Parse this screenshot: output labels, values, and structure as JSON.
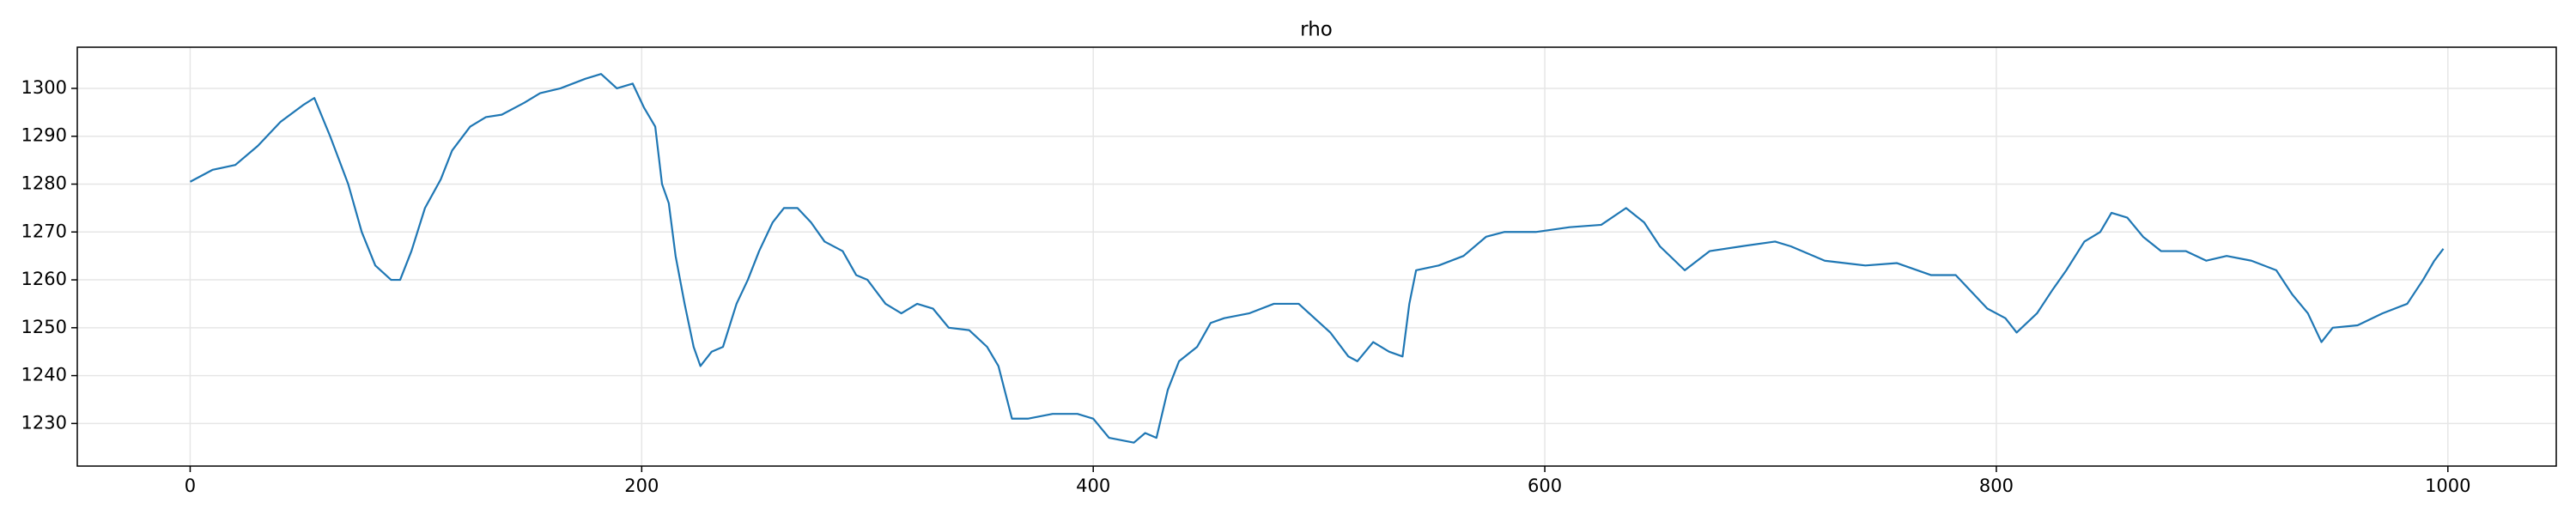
{
  "chart_data": {
    "type": "line",
    "title": "rho",
    "x": [
      0,
      10,
      20,
      30,
      40,
      50,
      55,
      62,
      70,
      76,
      82,
      89,
      93,
      98,
      104,
      111,
      116,
      124,
      131,
      138,
      148,
      155,
      164,
      175,
      182,
      189,
      196,
      201,
      206,
      209,
      212,
      215,
      219,
      223,
      226,
      231,
      236,
      242,
      247,
      252,
      258,
      263,
      269,
      275,
      281,
      289,
      295,
      300,
      308,
      315,
      322,
      329,
      336,
      345,
      353,
      358,
      364,
      371,
      382,
      393,
      400,
      407,
      418,
      423,
      428,
      433,
      438,
      446,
      452,
      458,
      469,
      480,
      491,
      498,
      505,
      513,
      517,
      524,
      531,
      537,
      540,
      543,
      553,
      564,
      574,
      582,
      596,
      611,
      625,
      636,
      644,
      651,
      662,
      673,
      687,
      702,
      709,
      724,
      742,
      756,
      771,
      782,
      796,
      804,
      809,
      818,
      825,
      831,
      839,
      846,
      851,
      858,
      865,
      873,
      884,
      893,
      902,
      913,
      924,
      931,
      938,
      944,
      949,
      960,
      971,
      982,
      989,
      994,
      998
    ],
    "series": [
      {
        "name": "rho",
        "color": "#1f77b4",
        "values": [
          1280.5,
          1283,
          1284,
          1288,
          1293,
          1296.5,
          1298,
          1290,
          1280,
          1270,
          1263,
          1260,
          1260,
          1266,
          1275,
          1281,
          1287,
          1292,
          1294,
          1294.5,
          1297,
          1299,
          1300,
          1302,
          1303,
          1300,
          1301,
          1296,
          1292,
          1280,
          1276,
          1265,
          1255,
          1246,
          1242,
          1245,
          1246,
          1255,
          1260,
          1266,
          1272,
          1275,
          1275,
          1272,
          1268,
          1266,
          1261,
          1260,
          1255,
          1253,
          1255,
          1254,
          1250,
          1249.5,
          1246,
          1242,
          1231,
          1231,
          1232,
          1232,
          1231,
          1227,
          1226,
          1228,
          1227,
          1237,
          1243,
          1246,
          1251,
          1252,
          1253,
          1255,
          1255,
          1252,
          1249,
          1244,
          1243,
          1247,
          1245,
          1244,
          1255,
          1262,
          1263,
          1265,
          1269,
          1270,
          1270,
          1271,
          1271.5,
          1275,
          1272,
          1267,
          1262,
          1266,
          1267,
          1268,
          1267,
          1264,
          1263,
          1263.5,
          1261,
          1261,
          1254,
          1252,
          1249,
          1253,
          1258,
          1262,
          1268,
          1270,
          1274,
          1273,
          1269,
          1266,
          1266,
          1264,
          1265,
          1264,
          1262,
          1257,
          1253,
          1247,
          1250,
          1250.5,
          1253,
          1255,
          1260,
          1264,
          1266.5
        ]
      }
    ],
    "xlim": [
      -50,
      1048
    ],
    "ylim": [
      1221.1,
      1308.6
    ],
    "xticks": [
      0,
      200,
      400,
      600,
      800,
      1000
    ],
    "yticks": [
      1230,
      1240,
      1250,
      1260,
      1270,
      1280,
      1290,
      1300
    ],
    "grid": true
  }
}
